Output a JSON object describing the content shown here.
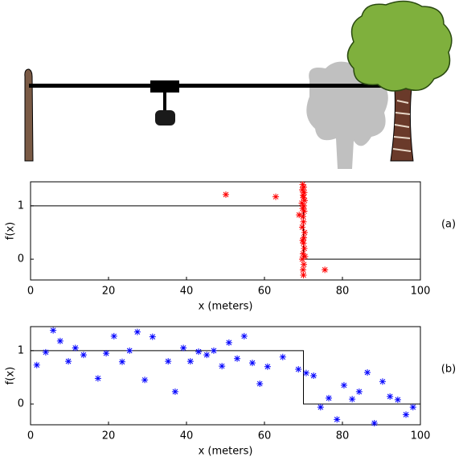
{
  "chart_data": [
    {
      "type": "scatter",
      "annotation": "(a)",
      "xlabel": "x (meters)",
      "ylabel": "f(x)",
      "xlim": [
        0,
        100
      ],
      "ylim": [
        -0.39,
        1.45
      ],
      "xticks": [
        0,
        20,
        40,
        60,
        80,
        100
      ],
      "yticks": [
        0,
        1
      ],
      "step": {
        "x": [
          0,
          70,
          70,
          100
        ],
        "values": [
          1,
          1,
          0,
          0
        ],
        "color": "#000000"
      },
      "points": {
        "color": "#ff0000",
        "x": [
          50.1,
          62.9,
          68.9,
          75.5,
          69.8,
          70.1,
          69.7,
          70.2,
          69.9,
          70.0,
          70.3,
          69.6,
          70.1,
          69.8,
          70.2,
          69.9,
          70.0,
          69.7,
          70.3,
          70.1,
          69.8,
          70.0,
          70.2,
          69.9,
          70.4,
          69.7,
          70.1,
          69.9,
          70.0
        ],
        "values": [
          1.21,
          1.17,
          0.83,
          -0.2,
          1.4,
          1.35,
          1.3,
          1.25,
          1.2,
          1.15,
          1.1,
          1.05,
          1.0,
          0.95,
          0.9,
          0.8,
          0.7,
          0.6,
          0.5,
          0.4,
          0.35,
          0.3,
          0.2,
          0.1,
          0.05,
          0.0,
          -0.1,
          -0.2,
          -0.3
        ]
      }
    },
    {
      "type": "scatter",
      "annotation": "(b)",
      "xlabel": "x (meters)",
      "ylabel": "f(x)",
      "xlim": [
        0,
        100
      ],
      "ylim": [
        -0.39,
        1.45
      ],
      "xticks": [
        0,
        20,
        40,
        60,
        80,
        100
      ],
      "yticks": [
        0,
        1
      ],
      "step": {
        "x": [
          0,
          70,
          70,
          100
        ],
        "values": [
          1,
          1,
          0,
          0
        ],
        "color": "#000000"
      },
      "points": {
        "color": "#0000ff",
        "x": [
          1.6,
          3.9,
          5.8,
          7.6,
          9.7,
          11.5,
          13.6,
          17.3,
          19.4,
          21.4,
          23.5,
          25.4,
          27.4,
          29.3,
          31.3,
          35.3,
          37.1,
          39.2,
          41.0,
          43.1,
          45.2,
          47.0,
          49.1,
          50.9,
          53.0,
          54.8,
          56.9,
          58.8,
          60.8,
          64.7,
          68.7,
          70.7,
          72.6,
          74.4,
          76.5,
          78.6,
          80.4,
          82.5,
          84.3,
          86.4,
          88.2,
          90.3,
          92.2,
          94.2,
          96.3,
          98.1
        ],
        "values": [
          0.73,
          0.97,
          1.38,
          1.18,
          0.8,
          1.05,
          0.92,
          0.48,
          0.95,
          1.27,
          0.79,
          1.0,
          1.35,
          0.45,
          1.26,
          0.8,
          0.23,
          1.05,
          0.8,
          0.98,
          0.92,
          1.0,
          0.71,
          1.15,
          0.85,
          1.27,
          0.77,
          0.38,
          0.7,
          0.88,
          0.65,
          0.58,
          0.53,
          -0.06,
          0.11,
          -0.29,
          0.35,
          0.09,
          0.23,
          0.59,
          -0.36,
          0.42,
          0.14,
          0.08,
          -0.2,
          -0.06
        ]
      }
    }
  ]
}
